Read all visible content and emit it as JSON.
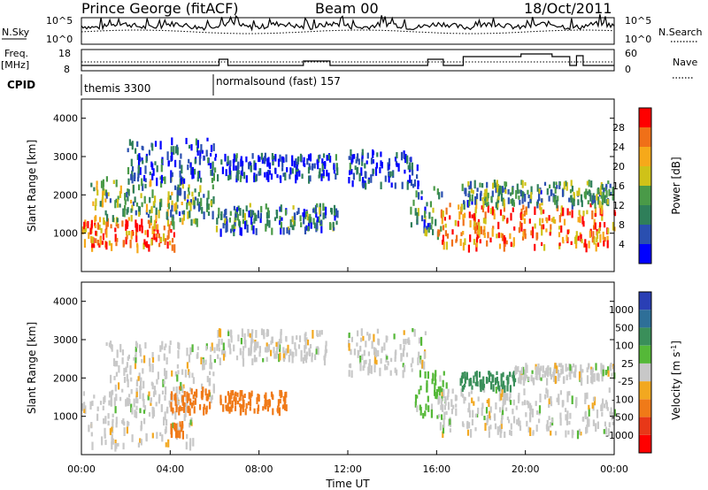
{
  "header": {
    "station": "Prince George (fitACF)",
    "beam": "Beam 00",
    "date": "18/Oct/2011"
  },
  "strip": {
    "nsky_label": "N.Sky",
    "nsky_top": "10^5",
    "nsky_bottom": "10^0",
    "nsearch_label": "N.Search",
    "nsearch_top": "10^5",
    "nsearch_bottom": "10^0",
    "freq_label": "Freq.",
    "freq_unit": "[MHz]",
    "freq_top": "18",
    "freq_bottom": "8",
    "nave_label": "Nave",
    "nave_top": "60",
    "nave_bottom": "0",
    "cpid_label": "CPID",
    "cpid_programs": [
      {
        "name": "themis 3300",
        "start_hour": 0
      },
      {
        "name": "normalsound (fast) 157",
        "start_hour": 6
      }
    ]
  },
  "axes": {
    "ylabel": "Slant Range [km]",
    "xlabel": "Time UT",
    "x_ticks": [
      "00:00",
      "04:00",
      "08:00",
      "12:00",
      "16:00",
      "20:00",
      "00:00"
    ],
    "y_ticks": [
      "1000",
      "2000",
      "3000",
      "4000"
    ]
  },
  "colorbars": {
    "power": {
      "label": "Power [dB]",
      "ticks": [
        "4",
        "8",
        "12",
        "16",
        "20",
        "24",
        "28"
      ],
      "colors": [
        "#0000ff",
        "#2a4fb0",
        "#2f7f5a",
        "#4a9a48",
        "#cfc218",
        "#f6a91a",
        "#f07018",
        "#ff0000"
      ]
    },
    "velocity": {
      "label": "Velocity [m s",
      "label_sup": "-1",
      "label_end": "]",
      "ticks": [
        "1000",
        "500",
        "100",
        "25",
        "-25",
        "-100",
        "-500",
        "-1000"
      ],
      "colors": [
        "#2a3fb5",
        "#2e6f98",
        "#3a8f5a",
        "#55b838",
        "#c8c8c8",
        "#f2a820",
        "#f07a18",
        "#e83818",
        "#ff0000"
      ]
    }
  },
  "chart_data": [
    {
      "type": "heatmap",
      "name": "power",
      "x_range_hours": [
        0,
        24
      ],
      "ylim": [
        0,
        4500
      ],
      "bands": [
        {
          "t0": 0.0,
          "t1": 4.2,
          "r0": 700,
          "r1": 1400,
          "level": 0.8
        },
        {
          "t0": 0.4,
          "t1": 4.8,
          "r0": 1400,
          "r1": 2500,
          "level": 0.45
        },
        {
          "t0": 2.0,
          "t1": 6.0,
          "r0": 2400,
          "r1": 3500,
          "level": 0.2
        },
        {
          "t0": 4.0,
          "t1": 6.0,
          "r0": 1300,
          "r1": 2300,
          "level": 0.35
        },
        {
          "t0": 6.0,
          "t1": 11.5,
          "r0": 1100,
          "r1": 1800,
          "level": 0.3
        },
        {
          "t0": 6.0,
          "t1": 11.5,
          "r0": 2500,
          "r1": 3100,
          "level": 0.15
        },
        {
          "t0": 12.0,
          "t1": 15.2,
          "r0": 2300,
          "r1": 3200,
          "level": 0.15
        },
        {
          "t0": 14.8,
          "t1": 16.2,
          "r0": 1000,
          "r1": 2300,
          "level": 0.35
        },
        {
          "t0": 16.0,
          "t1": 24.0,
          "r0": 700,
          "r1": 1800,
          "level": 0.8
        },
        {
          "t0": 17.0,
          "t1": 24.0,
          "r0": 1800,
          "r1": 2400,
          "level": 0.35
        }
      ]
    },
    {
      "type": "heatmap",
      "name": "velocity",
      "x_range_hours": [
        0,
        24
      ],
      "ylim": [
        0,
        4500
      ],
      "bands": [
        {
          "t0": 0.0,
          "t1": 5.0,
          "r0": 300,
          "r1": 1700,
          "value": 0
        },
        {
          "t0": 1.0,
          "t1": 6.0,
          "r0": 1500,
          "r1": 3000,
          "value": 0
        },
        {
          "t0": 4.0,
          "t1": 5.8,
          "r0": 1200,
          "r1": 1800,
          "value": -400
        },
        {
          "t0": 4.0,
          "t1": 4.6,
          "r0": 600,
          "r1": 900,
          "value": -200
        },
        {
          "t0": 6.2,
          "t1": 9.2,
          "r0": 1200,
          "r1": 1700,
          "value": -400
        },
        {
          "t0": 6.0,
          "t1": 11.0,
          "r0": 2500,
          "r1": 3300,
          "value": 0
        },
        {
          "t0": 12.0,
          "t1": 15.5,
          "r0": 2200,
          "r1": 3300,
          "value": 0
        },
        {
          "t0": 15.0,
          "t1": 16.5,
          "r0": 1000,
          "r1": 2300,
          "value": 50
        },
        {
          "t0": 16.0,
          "t1": 24.0,
          "r0": 600,
          "r1": 1800,
          "value": 0
        },
        {
          "t0": 17.0,
          "t1": 19.5,
          "r0": 1800,
          "r1": 2200,
          "value": 150
        },
        {
          "t0": 19.5,
          "t1": 24.0,
          "r0": 2000,
          "r1": 2400,
          "value": 0
        }
      ]
    }
  ]
}
